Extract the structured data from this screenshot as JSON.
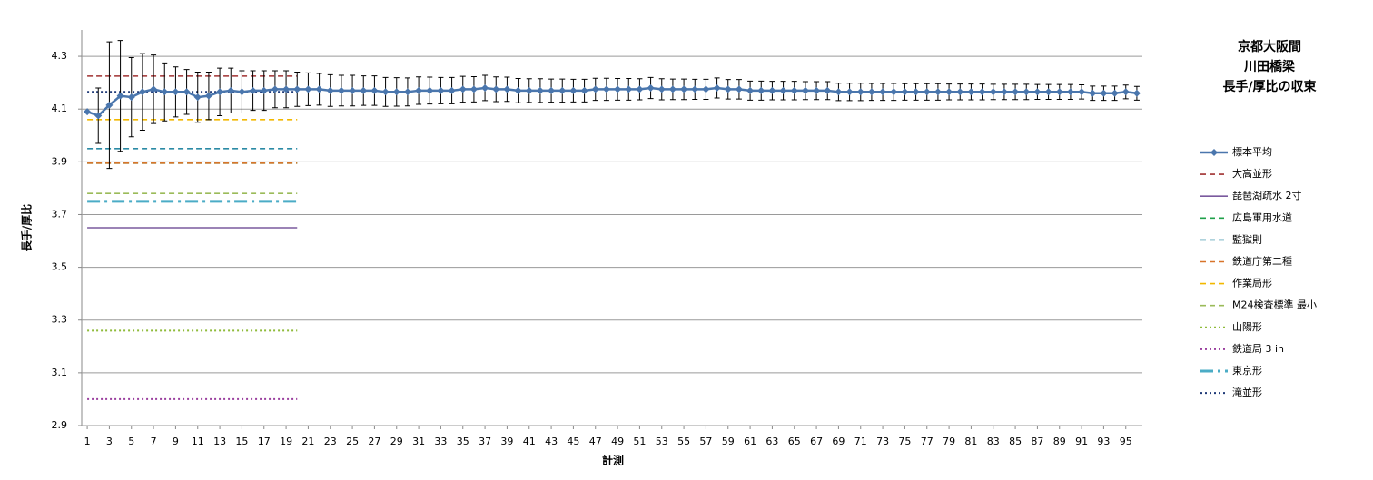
{
  "chart_data": {
    "type": "line",
    "title": [
      "京都大阪間",
      "川田橋梁",
      "長手/厚比の収束"
    ],
    "x_label": "計測",
    "y_label": "長手/厚比",
    "xlim": [
      0.5,
      96.5
    ],
    "xticks": [
      1,
      3,
      5,
      7,
      9,
      11,
      13,
      15,
      17,
      19,
      21,
      23,
      25,
      27,
      29,
      31,
      33,
      35,
      37,
      39,
      41,
      43,
      45,
      47,
      49,
      51,
      53,
      55,
      57,
      59,
      61,
      63,
      65,
      67,
      69,
      71,
      73,
      75,
      77,
      79,
      81,
      83,
      85,
      87,
      89,
      91,
      93,
      95
    ],
    "ylim": [
      2.9,
      4.4
    ],
    "yticks": [
      2.9,
      3.1,
      3.3,
      3.5,
      3.7,
      3.9,
      4.1,
      4.3
    ],
    "grid": true,
    "legend": "right",
    "series": [
      {
        "name": "標本平均",
        "color": "#4a76ad",
        "dash": "solid",
        "marker": "diamond",
        "x": [
          1,
          2,
          3,
          4,
          5,
          6,
          7,
          8,
          9,
          10,
          11,
          12,
          13,
          14,
          15,
          16,
          17,
          18,
          19,
          20,
          21,
          22,
          23,
          24,
          25,
          26,
          27,
          28,
          29,
          30,
          31,
          32,
          33,
          34,
          35,
          36,
          37,
          38,
          39,
          40,
          41,
          42,
          43,
          44,
          45,
          46,
          47,
          48,
          49,
          50,
          51,
          52,
          53,
          54,
          55,
          56,
          57,
          58,
          59,
          60,
          61,
          62,
          63,
          64,
          65,
          66,
          67,
          68,
          69,
          70,
          71,
          72,
          73,
          74,
          75,
          76,
          77,
          78,
          79,
          80,
          81,
          82,
          83,
          84,
          85,
          86,
          87,
          88,
          89,
          90,
          91,
          92,
          93,
          94,
          95,
          96
        ],
        "values": [
          4.09,
          4.075,
          4.115,
          4.15,
          4.145,
          4.165,
          4.175,
          4.165,
          4.165,
          4.165,
          4.145,
          4.15,
          4.165,
          4.17,
          4.165,
          4.17,
          4.17,
          4.175,
          4.175,
          4.175,
          4.175,
          4.175,
          4.17,
          4.17,
          4.17,
          4.17,
          4.17,
          4.165,
          4.165,
          4.165,
          4.17,
          4.17,
          4.17,
          4.17,
          4.175,
          4.175,
          4.18,
          4.175,
          4.175,
          4.17,
          4.17,
          4.17,
          4.17,
          4.17,
          4.17,
          4.17,
          4.175,
          4.175,
          4.175,
          4.175,
          4.175,
          4.18,
          4.175,
          4.175,
          4.175,
          4.175,
          4.175,
          4.18,
          4.175,
          4.175,
          4.17,
          4.17,
          4.17,
          4.17,
          4.17,
          4.17,
          4.17,
          4.17,
          4.165,
          4.165,
          4.165,
          4.165,
          4.165,
          4.165,
          4.165,
          4.165,
          4.165,
          4.165,
          4.165,
          4.165,
          4.165,
          4.165,
          4.165,
          4.165,
          4.165,
          4.165,
          4.165,
          4.165,
          4.165,
          4.165,
          4.165,
          4.16,
          4.16,
          4.16,
          4.165,
          4.16
        ],
        "errors": [
          null,
          0.105,
          0.24,
          0.21,
          0.15,
          0.145,
          0.13,
          0.11,
          0.095,
          0.085,
          0.095,
          0.09,
          0.09,
          0.085,
          0.08,
          0.075,
          0.075,
          0.07,
          0.07,
          0.065,
          0.062,
          0.06,
          0.06,
          0.058,
          0.058,
          0.056,
          0.056,
          0.055,
          0.054,
          0.053,
          0.052,
          0.051,
          0.05,
          0.05,
          0.049,
          0.048,
          0.048,
          0.047,
          0.046,
          0.046,
          0.045,
          0.045,
          0.044,
          0.044,
          0.043,
          0.043,
          0.042,
          0.042,
          0.041,
          0.041,
          0.04,
          0.04,
          0.04,
          0.039,
          0.039,
          0.038,
          0.038,
          0.038,
          0.037,
          0.037,
          0.036,
          0.036,
          0.035,
          0.035,
          0.035,
          0.034,
          0.034,
          0.034,
          0.033,
          0.033,
          0.033,
          0.032,
          0.032,
          0.032,
          0.031,
          0.031,
          0.031,
          0.031,
          0.03,
          0.03,
          0.03,
          0.03,
          0.029,
          0.029,
          0.029,
          0.029,
          0.028,
          0.028,
          0.028,
          0.028,
          0.027,
          0.027,
          0.027,
          0.027,
          0.026,
          0.026
        ]
      },
      {
        "name": "大高並形",
        "color": "#a03030",
        "dash": "dash",
        "x": [
          1,
          20
        ],
        "values": [
          4.225,
          4.225
        ]
      },
      {
        "name": "琵琶湖疏水 2寸",
        "color": "#7a5a9e",
        "dash": "solid",
        "x": [
          1,
          20
        ],
        "values": [
          3.65,
          3.65
        ]
      },
      {
        "name": "広島軍用水道",
        "color": "#1fa04a",
        "dash": "dash",
        "x": [
          1,
          20
        ],
        "values": [
          3.895,
          3.895
        ]
      },
      {
        "name": "監獄則",
        "color": "#2b8aa5",
        "dash": "dash",
        "x": [
          1,
          20
        ],
        "values": [
          3.95,
          3.95
        ]
      },
      {
        "name": "鉄道庁第二種",
        "color": "#d8742a",
        "dash": "dash",
        "x": [
          1,
          20
        ],
        "values": [
          3.895,
          3.895
        ]
      },
      {
        "name": "作業局形",
        "color": "#f2b800",
        "dash": "dash",
        "x": [
          1,
          20
        ],
        "values": [
          4.06,
          4.06
        ]
      },
      {
        "name": "M24検査標準 最小",
        "color": "#9bbb59",
        "dash": "dash",
        "x": [
          1,
          20
        ],
        "values": [
          3.78,
          3.78
        ]
      },
      {
        "name": "山陽形",
        "color": "#8fbb3a",
        "dash": "dot",
        "x": [
          1,
          20
        ],
        "values": [
          3.26,
          3.26
        ]
      },
      {
        "name": "鉄道局 3 in",
        "color": "#9a3f9e",
        "dash": "dot",
        "x": [
          1,
          20
        ],
        "values": [
          3.0,
          3.0
        ]
      },
      {
        "name": "東京形",
        "color": "#4bacc6",
        "dash": "dashdot",
        "x": [
          1,
          20
        ],
        "values": [
          3.75,
          3.75
        ]
      },
      {
        "name": "滝並形",
        "color": "#1f3a78",
        "dash": "dot",
        "x": [
          1,
          20
        ],
        "values": [
          4.165,
          4.165
        ]
      }
    ]
  }
}
